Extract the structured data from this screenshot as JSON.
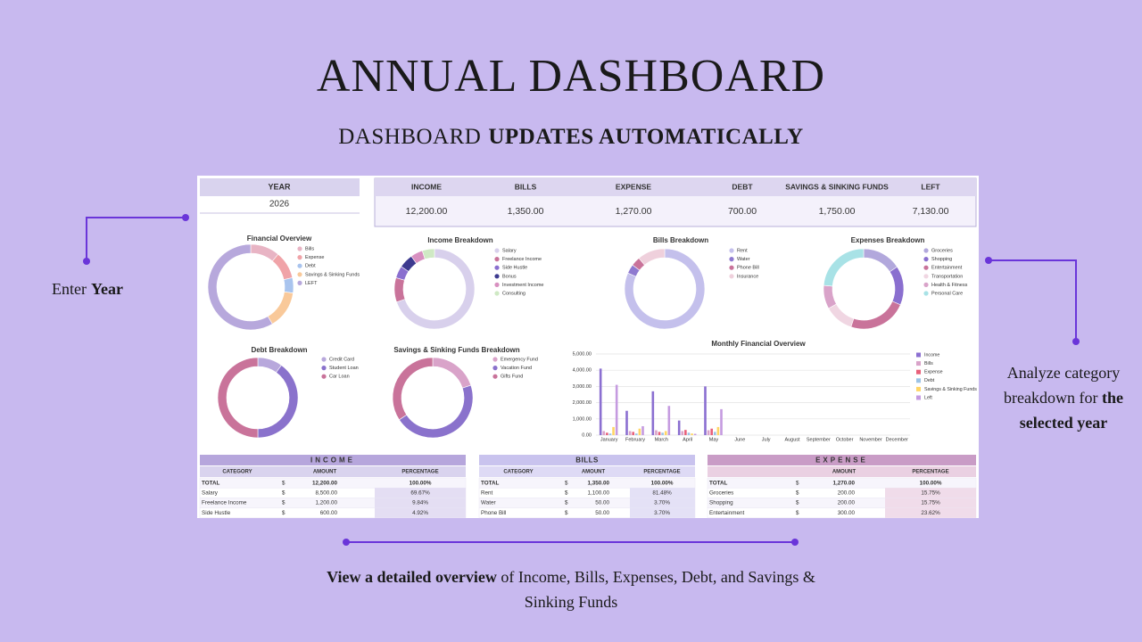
{
  "header": {
    "title": "ANNUAL DASHBOARD",
    "subtitle_plain": "DASHBOARD",
    "subtitle_bold": "UPDATES AUTOMATICALLY"
  },
  "annotations": {
    "left": {
      "plain": "Enter",
      "bold": "Year"
    },
    "right": {
      "plain": "Analyze category breakdown for",
      "bold": "the selected year"
    },
    "bottom": {
      "bold": "View a detailed overview",
      "plain": "of Income, Bills, Expenses, Debt, and Savings & Sinking Funds"
    }
  },
  "dashboard": {
    "year": {
      "label": "YEAR",
      "value": "2026"
    },
    "summary": {
      "labels": [
        "INCOME",
        "BILLS",
        "EXPENSE",
        "DEBT",
        "SAVINGS & SINKING FUNDS",
        "LEFT"
      ],
      "values": [
        "12,200.00",
        "1,350.00",
        "1,270.00",
        "700.00",
        "1,750.00",
        "7,130.00"
      ]
    },
    "donuts": [
      {
        "type": "pie",
        "title": "Financial Overview",
        "labels": [
          "Bills",
          "Expense",
          "Debt",
          "Savings & Sinking Funds",
          "LEFT"
        ],
        "values": [
          1350,
          1270,
          700,
          1750,
          7130
        ],
        "colors": [
          "#e8b4c4",
          "#f0a3a8",
          "#a9c4ee",
          "#f9c99a",
          "#b7a8dc"
        ]
      },
      {
        "type": "pie",
        "title": "Income Breakdown",
        "labels": [
          "Salary",
          "Freelance Income",
          "Side Hustle",
          "Bonus",
          "Investment Income",
          "Consulting"
        ],
        "values": [
          8500,
          1200,
          600,
          700,
          600,
          600
        ],
        "colors": [
          "#d8d0ec",
          "#c9739a",
          "#8a6fcf",
          "#3d3a8f",
          "#d890c0",
          "#cfe9c4"
        ]
      },
      {
        "type": "pie",
        "title": "Bills Breakdown",
        "labels": [
          "Rent",
          "Water",
          "Phone Bill",
          "Insurance"
        ],
        "values": [
          1100,
          50,
          50,
          150
        ],
        "colors": [
          "#c4c0ec",
          "#8e79d0",
          "#c9739a",
          "#efd0dc"
        ]
      },
      {
        "type": "pie",
        "title": "Expenses Breakdown",
        "labels": [
          "Groceries",
          "Shopping",
          "Entertainment",
          "Transportation",
          "Health & Fitness",
          "Personal Care"
        ],
        "values": [
          200,
          200,
          300,
          150,
          120,
          300
        ],
        "colors": [
          "#b2a8dc",
          "#8a6fcf",
          "#c9739a",
          "#f0d6e2",
          "#d9a3c9",
          "#a8e2e6"
        ]
      },
      {
        "type": "pie",
        "title": "Debt Breakdown",
        "labels": [
          "Credit Card",
          "Student Loan",
          "Car Loan"
        ],
        "values": [
          70,
          280,
          350
        ],
        "colors": [
          "#b8a8dc",
          "#8a72cc",
          "#c9739a"
        ]
      },
      {
        "type": "pie",
        "title": "Savings & Sinking Funds Breakdown",
        "labels": [
          "Emergency Fund",
          "Vacation Fund",
          "Gifts Fund"
        ],
        "values": [
          350,
          800,
          600
        ],
        "colors": [
          "#d9a3c9",
          "#8a72cc",
          "#c9739a"
        ]
      }
    ],
    "monthly": {
      "type": "bar",
      "title": "Monthly Financial Overview",
      "categories": [
        "January",
        "February",
        "March",
        "April",
        "May",
        "June",
        "July",
        "August",
        "September",
        "October",
        "November",
        "December"
      ],
      "series": [
        {
          "name": "Income",
          "color": "#8b6fd1",
          "values": [
            4100,
            1500,
            2700,
            900,
            3000,
            0,
            0,
            0,
            0,
            0,
            0,
            0
          ]
        },
        {
          "name": "Bills",
          "color": "#d9a3c9",
          "values": [
            250,
            250,
            300,
            250,
            300,
            0,
            0,
            0,
            0,
            0,
            0,
            0
          ]
        },
        {
          "name": "Expense",
          "color": "#e8607a",
          "values": [
            150,
            200,
            200,
            320,
            400,
            0,
            0,
            0,
            0,
            0,
            0,
            0
          ]
        },
        {
          "name": "Debt",
          "color": "#9cc3e6",
          "values": [
            100,
            100,
            150,
            150,
            200,
            0,
            0,
            0,
            0,
            0,
            0,
            0
          ]
        },
        {
          "name": "Savings & Sinking Funds",
          "color": "#ffd666",
          "values": [
            500,
            400,
            250,
            100,
            500,
            0,
            0,
            0,
            0,
            0,
            0,
            0
          ]
        },
        {
          "name": "Left",
          "color": "#c59be0",
          "values": [
            3100,
            550,
            1800,
            80,
            1600,
            0,
            0,
            0,
            0,
            0,
            0,
            0
          ]
        }
      ],
      "ylim": [
        0,
        5000
      ],
      "yticks": [
        {
          "value": 0,
          "label": "0.00"
        },
        {
          "value": 1000,
          "label": "1,000.00"
        },
        {
          "value": 2000,
          "label": "2,000.00"
        },
        {
          "value": 3000,
          "label": "3,000.00"
        },
        {
          "value": 4000,
          "label": "4,000.00"
        },
        {
          "value": 5000,
          "label": "5,000.00"
        }
      ],
      "grid": true
    },
    "tables": [
      {
        "title": "INCOME",
        "headers": {
          "category": "CATEGORY",
          "amount": "AMOUNT",
          "percentage": "PERCENTAGE"
        },
        "currency": "$",
        "rows": [
          [
            "TOTAL",
            "12,200.00",
            "100.00%"
          ],
          [
            "Salary",
            "8,500.00",
            "69.67%"
          ],
          [
            "Freelance Income",
            "1,200.00",
            "9.84%"
          ],
          [
            "Side Hustle",
            "600.00",
            "4.92%"
          ]
        ]
      },
      {
        "title": "BILLS",
        "headers": {
          "category": "CATEGORY",
          "amount": "AMOUNT",
          "percentage": "PERCENTAGE"
        },
        "currency": "$",
        "rows": [
          [
            "TOTAL",
            "1,350.00",
            "100.00%"
          ],
          [
            "Rent",
            "1,100.00",
            "81.48%"
          ],
          [
            "Water",
            "50.00",
            "3.70%"
          ],
          [
            "Phone Bill",
            "50.00",
            "3.70%"
          ]
        ]
      },
      {
        "title": "EXPENSE",
        "headers": {
          "amount": "AMOUNT",
          "percentage": "PERCENTAGE"
        },
        "currency": "$",
        "rows": [
          [
            "TOTAL",
            "1,270.00",
            "100.00%"
          ],
          [
            "Groceries",
            "200.00",
            "15.75%"
          ],
          [
            "Shopping",
            "200.00",
            "15.75%"
          ],
          [
            "Entertainment",
            "300.00",
            "23.62%"
          ]
        ]
      }
    ]
  }
}
